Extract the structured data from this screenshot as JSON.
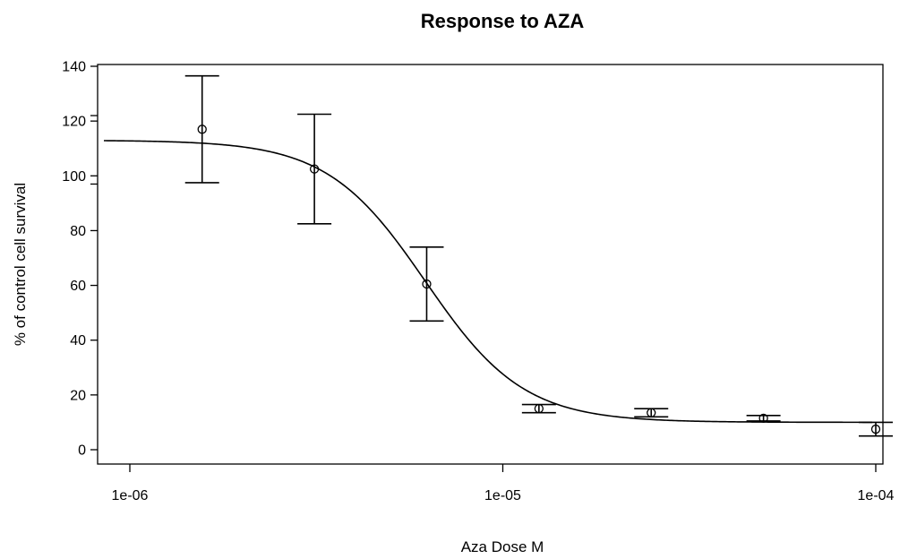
{
  "chart_data": {
    "type": "scatter",
    "title": "Response to AZA",
    "xlabel": "Aza Dose M",
    "ylabel": "% of control cell survival",
    "x_scale": "log",
    "xlim": [
      1e-06,
      0.0001
    ],
    "x_ticks": [
      {
        "value": 1e-06,
        "label": "1e-06"
      },
      {
        "value": 1e-05,
        "label": "1e-05"
      },
      {
        "value": 0.0001,
        "label": "1e-04"
      }
    ],
    "ylim": [
      0,
      140
    ],
    "y_ticks": [
      {
        "value": 0,
        "label": "0"
      },
      {
        "value": 20,
        "label": "20"
      },
      {
        "value": 40,
        "label": "40"
      },
      {
        "value": 60,
        "label": "60"
      },
      {
        "value": 80,
        "label": "80"
      },
      {
        "value": 100,
        "label": "100"
      },
      {
        "value": 120,
        "label": "120"
      },
      {
        "value": 140,
        "label": "140"
      }
    ],
    "grid": false,
    "points": [
      {
        "x": 1.5625e-06,
        "y": 117,
        "err_low": 97.5,
        "err_high": 136.5
      },
      {
        "x": 3.125e-06,
        "y": 102.5,
        "err_low": 82.5,
        "err_high": 122.5
      },
      {
        "x": 6.25e-06,
        "y": 60.5,
        "err_low": 47,
        "err_high": 74
      },
      {
        "x": 1.25e-05,
        "y": 15,
        "err_low": 13.5,
        "err_high": 16.5
      },
      {
        "x": 2.5e-05,
        "y": 13.5,
        "err_low": 12,
        "err_high": 15
      },
      {
        "x": 5e-05,
        "y": 11.5,
        "err_low": 10.5,
        "err_high": 12.5
      },
      {
        "x": 0.0001,
        "y": 7.5,
        "err_low": 5,
        "err_high": 10
      }
    ],
    "fit_curve": {
      "model": "4-parameter logistic",
      "top": 113,
      "bottom": 10,
      "ec50": 6.2e-06,
      "hill": 3.3
    },
    "extra_marks_on_left_axis": [
      122,
      97
    ]
  }
}
